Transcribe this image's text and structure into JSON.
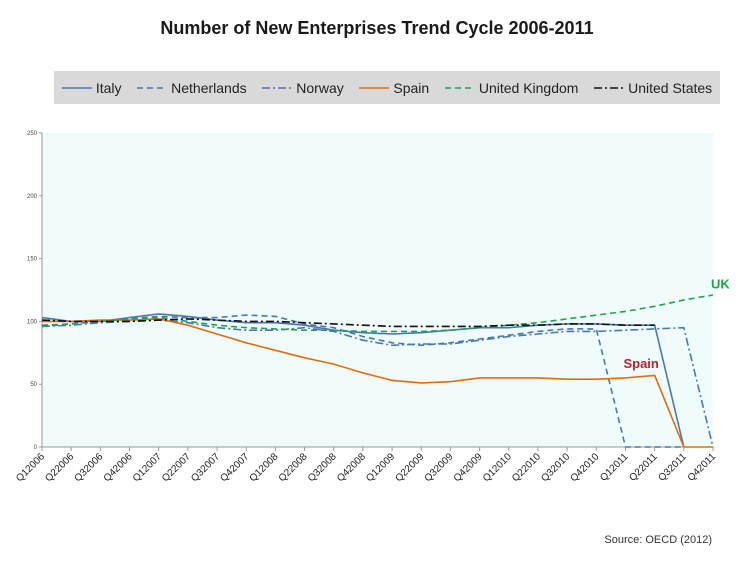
{
  "chart_data": {
    "type": "line",
    "title": "Number of New Enterprises Trend Cycle 2006-2011",
    "xlabel": "",
    "ylabel": "",
    "ylim": [
      0,
      250
    ],
    "yticks": [
      0,
      50,
      100,
      150,
      200,
      250
    ],
    "grid": false,
    "legend_position": "top",
    "categories": [
      "Q12006",
      "Q22006",
      "Q32006",
      "Q42006",
      "Q12007",
      "Q22007",
      "Q32007",
      "Q42007",
      "Q12008",
      "Q22008",
      "Q32008",
      "Q42008",
      "Q12009",
      "Q22009",
      "Q32009",
      "Q42009",
      "Q12010",
      "Q22010",
      "Q32010",
      "Q42010",
      "Q12011",
      "Q22011",
      "Q32011",
      "Q42011"
    ],
    "series": [
      {
        "name": "Italy",
        "color": "#4a76b8",
        "dash": "solid",
        "values": [
          103,
          100,
          100,
          103,
          106,
          104,
          101,
          99,
          99,
          97,
          93,
          91,
          90,
          91,
          93,
          95,
          95,
          97,
          98,
          98,
          97,
          97,
          0,
          null
        ]
      },
      {
        "name": "Netherlands",
        "color": "#4a76b8",
        "dash": "dashed",
        "values": [
          97,
          98,
          100,
          102,
          104,
          103,
          103,
          105,
          104,
          98,
          95,
          88,
          83,
          81,
          83,
          86,
          89,
          92,
          94,
          94,
          0,
          0,
          0,
          null
        ]
      },
      {
        "name": "Norway",
        "color": "#4a76b8",
        "dash": "dashdot",
        "values": [
          96,
          97,
          99,
          100,
          101,
          99,
          95,
          93,
          93,
          95,
          92,
          85,
          81,
          82,
          82,
          85,
          88,
          90,
          92,
          92,
          93,
          94,
          95,
          0
        ]
      },
      {
        "name": "Spain",
        "color": "#e46c0a",
        "dash": "solid",
        "values": [
          100,
          100,
          101,
          101,
          102,
          97,
          90,
          83,
          77,
          71,
          66,
          59,
          53,
          51,
          52,
          55,
          55,
          55,
          54,
          54,
          55,
          57,
          0,
          0
        ]
      },
      {
        "name": "United Kingdom",
        "color": "#1aa64a",
        "dash": "dashed",
        "values": [
          96,
          98,
          100,
          102,
          103,
          100,
          97,
          95,
          94,
          93,
          93,
          92,
          92,
          92,
          93,
          95,
          97,
          99,
          102,
          105,
          108,
          112,
          117,
          121
        ]
      },
      {
        "name": "United States",
        "color": "#111111",
        "dash": "dashdot",
        "values": [
          101,
          100,
          100,
          100,
          101,
          102,
          101,
          100,
          100,
          99,
          98,
          97,
          96,
          96,
          96,
          96,
          97,
          97,
          98,
          98,
          97,
          97,
          null,
          null
        ]
      }
    ],
    "annotations": [
      {
        "text": "UK",
        "color": "#1aa64a",
        "x": "Q42011",
        "y": 126
      },
      {
        "text": "Spain",
        "color": "#c0202a",
        "x": "Q12011",
        "y": 63
      }
    ]
  },
  "source_note": "Source: OECD (2012)"
}
